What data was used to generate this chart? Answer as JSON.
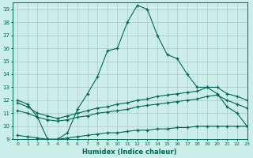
{
  "xlabel": "Humidex (Indice chaleur)",
  "bg_color": "#cceee8",
  "line_color": "#006655",
  "ylim": [
    9,
    19.5
  ],
  "xlim": [
    -0.5,
    23
  ],
  "yticks": [
    9,
    10,
    11,
    12,
    13,
    14,
    15,
    16,
    17,
    18,
    19
  ],
  "xticks": [
    0,
    1,
    2,
    3,
    4,
    5,
    6,
    7,
    8,
    9,
    10,
    11,
    12,
    13,
    14,
    15,
    16,
    17,
    18,
    19,
    20,
    21,
    22,
    23
  ],
  "curve1_x": [
    0,
    1,
    2,
    3,
    4,
    5,
    6,
    7,
    8,
    9,
    10,
    11,
    12,
    13,
    14,
    15,
    16,
    17,
    18,
    19,
    20,
    21,
    22,
    23
  ],
  "curve1_y": [
    12.0,
    11.7,
    10.7,
    9.0,
    9.0,
    9.5,
    11.3,
    12.5,
    13.8,
    15.8,
    16.0,
    18.0,
    19.3,
    19.0,
    17.0,
    15.5,
    15.2,
    14.0,
    13.0,
    13.0,
    12.5,
    11.5,
    11.0,
    10.0
  ],
  "curve2_x": [
    0,
    1,
    2,
    3,
    4,
    5,
    6,
    7,
    8,
    9,
    10,
    11,
    12,
    13,
    14,
    15,
    16,
    17,
    18,
    19,
    20,
    21,
    22,
    23
  ],
  "curve2_y": [
    11.8,
    11.5,
    11.0,
    10.8,
    10.6,
    10.8,
    11.0,
    11.2,
    11.4,
    11.5,
    11.7,
    11.8,
    12.0,
    12.1,
    12.3,
    12.4,
    12.5,
    12.6,
    12.7,
    13.0,
    13.0,
    12.5,
    12.3,
    12.0
  ],
  "curve3_x": [
    0,
    1,
    2,
    3,
    4,
    5,
    6,
    7,
    8,
    9,
    10,
    11,
    12,
    13,
    14,
    15,
    16,
    17,
    18,
    19,
    20,
    21,
    22,
    23
  ],
  "curve3_y": [
    11.2,
    11.0,
    10.7,
    10.5,
    10.4,
    10.5,
    10.7,
    10.8,
    11.0,
    11.1,
    11.2,
    11.3,
    11.5,
    11.6,
    11.7,
    11.8,
    11.9,
    12.0,
    12.1,
    12.3,
    12.4,
    12.0,
    11.7,
    11.4
  ],
  "curve4_x": [
    0,
    1,
    2,
    3,
    4,
    5,
    6,
    7,
    8,
    9,
    10,
    11,
    12,
    13,
    14,
    15,
    16,
    17,
    18,
    19,
    20,
    21,
    22,
    23
  ],
  "curve4_y": [
    9.3,
    9.2,
    9.1,
    9.0,
    9.0,
    9.1,
    9.2,
    9.3,
    9.4,
    9.5,
    9.5,
    9.6,
    9.7,
    9.7,
    9.8,
    9.8,
    9.9,
    9.9,
    10.0,
    10.0,
    10.0,
    10.0,
    10.0,
    10.0
  ]
}
